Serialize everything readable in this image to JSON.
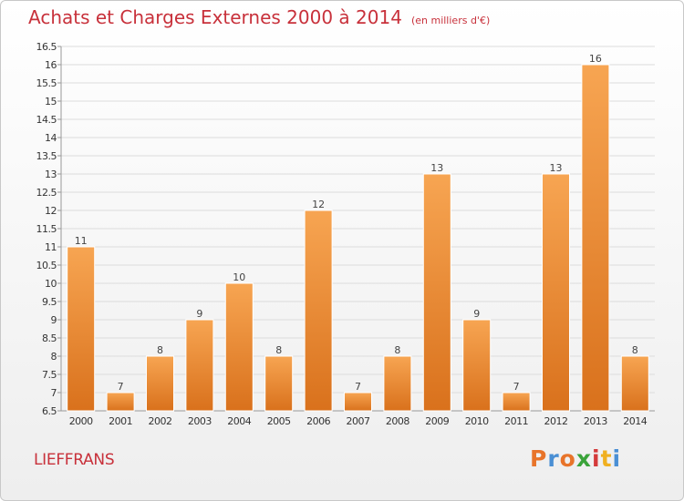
{
  "header": {
    "title": "Achats et Charges Externes 2000 à 2014",
    "unit": "(en milliers d'€)"
  },
  "footer": {
    "place": "LIEFFRANS",
    "logo": "Proxiti"
  },
  "colors": {
    "title": "#c8313b",
    "bar_top": "#f7a552",
    "bar_bottom": "#d9711c",
    "logo_letters": [
      "#e8742a",
      "#4a8fd4",
      "#e8742a",
      "#3aa33a",
      "#d43a3a",
      "#f0b020",
      "#4a8fd4"
    ]
  },
  "chart_data": {
    "type": "bar",
    "categories": [
      "2000",
      "2001",
      "2002",
      "2003",
      "2004",
      "2005",
      "2006",
      "2007",
      "2008",
      "2009",
      "2010",
      "2011",
      "2012",
      "2013",
      "2014"
    ],
    "values": [
      11,
      7,
      8,
      9,
      10,
      8,
      12,
      7,
      8,
      13,
      9,
      7,
      13,
      16,
      8
    ],
    "data_labels": [
      "11",
      "7",
      "8",
      "9",
      "10",
      "8",
      "12",
      "7",
      "8",
      "13",
      "9",
      "7",
      "13",
      "16",
      "8"
    ],
    "ylim": [
      6.5,
      16.5
    ],
    "yticks": [
      6.5,
      7,
      7.5,
      8,
      8.5,
      9,
      9.5,
      10,
      10.5,
      11,
      11.5,
      12,
      12.5,
      13,
      13.5,
      14,
      14.5,
      15,
      15.5,
      16,
      16.5
    ],
    "ytick_labels": [
      "6.5",
      "7",
      "7.5",
      "8",
      "8.5",
      "9",
      "9.5",
      "10",
      "10.5",
      "11",
      "11.5",
      "12",
      "12.5",
      "13",
      "13.5",
      "14",
      "14.5",
      "15",
      "15.5",
      "16",
      "16.5"
    ],
    "grid": true
  }
}
